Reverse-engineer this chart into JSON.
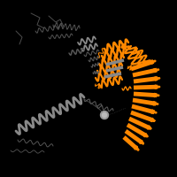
{
  "background_color": "#000000",
  "domain_color": "#FF8800",
  "chain_color": "#555555",
  "chain_color2": "#888888",
  "figsize": [
    2.0,
    2.0
  ],
  "dpi": 100,
  "helix_color_gray": "#777777",
  "small_circle_color": "#888888",
  "strand_color_gray": "#444444"
}
